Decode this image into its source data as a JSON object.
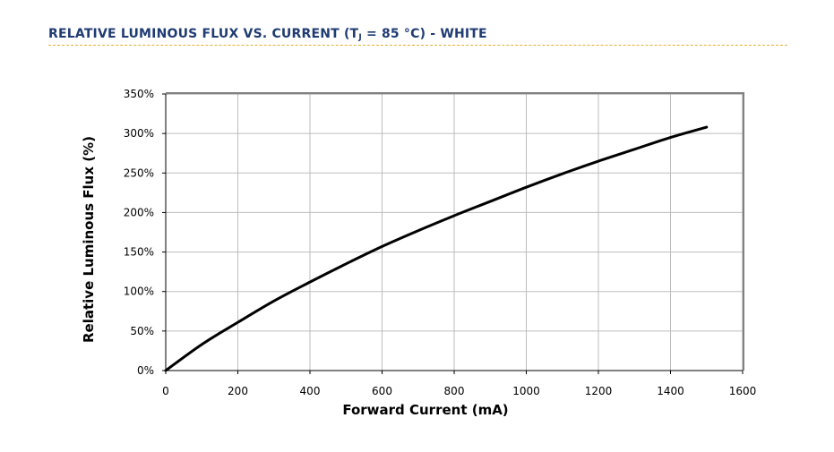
{
  "header": {
    "title_prefix": "RELATIVE LUMINOUS FLUX VS. CURRENT (T",
    "title_sub": "J",
    "title_suffix": " = 85 °C) - WHITE"
  },
  "chart_data": {
    "type": "line",
    "title": "RELATIVE LUMINOUS FLUX VS. CURRENT (TJ = 85 °C) - WHITE",
    "xlabel": "Forward Current (mA)",
    "ylabel": "Relative Luminous Flux (%)",
    "xlim": [
      0,
      1600
    ],
    "ylim": [
      0,
      350
    ],
    "x_ticks": [
      0,
      200,
      400,
      600,
      800,
      1000,
      1200,
      1400,
      1600
    ],
    "y_ticks": [
      0,
      50,
      100,
      150,
      200,
      250,
      300,
      350
    ],
    "y_tick_labels": [
      "0%",
      "50%",
      "100%",
      "150%",
      "200%",
      "250%",
      "300%",
      "350%"
    ],
    "grid": true,
    "legend": "none",
    "series": [
      {
        "color": "#000000",
        "x": [
          0,
          100,
          200,
          300,
          400,
          500,
          600,
          700,
          800,
          900,
          1000,
          1100,
          1200,
          1300,
          1400,
          1500
        ],
        "y": [
          0,
          33,
          61,
          88,
          112,
          135,
          157,
          177,
          196,
          214,
          232,
          249,
          265,
          280,
          295,
          308
        ]
      }
    ]
  }
}
